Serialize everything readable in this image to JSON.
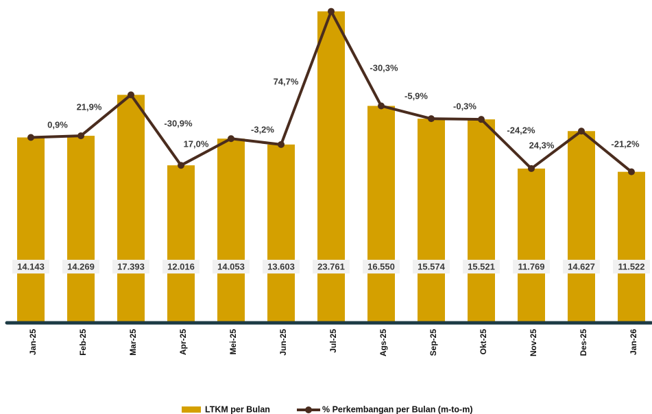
{
  "chart_data": {
    "type": "bar_line",
    "categories": [
      "Jan-25",
      "Feb-25",
      "Mar-25",
      "Apr-25",
      "Mei-25",
      "Jun-25",
      "Jul-25",
      "Ags-25",
      "Sep-25",
      "Okt-25",
      "Nov-25",
      "Des-25",
      "Jan-26"
    ],
    "series": [
      {
        "name": "LTKM per Bulan",
        "color": "#d4a000",
        "values": [
          14143,
          14269,
          17393,
          12016,
          14053,
          13603,
          23761,
          16550,
          15574,
          15521,
          11769,
          14627,
          11522
        ],
        "value_labels": [
          "14.143",
          "14.269",
          "17.393",
          "12.016",
          "14.053",
          "13.603",
          "23.761",
          "16.550",
          "15.574",
          "15.521",
          "11.769",
          "14.627",
          "11.522"
        ]
      },
      {
        "name": "% Perkembangan per Bulan (m-to-m)",
        "color": "#4a2c1e",
        "values": [
          null,
          0.9,
          21.9,
          -30.9,
          17.0,
          -3.2,
          74.7,
          -30.3,
          -5.9,
          -0.3,
          -24.2,
          24.3,
          -21.2
        ],
        "value_labels": [
          null,
          "0,9%",
          "21,9%",
          "-30,9%",
          "17,0%",
          "-3,2%",
          "74,7%",
          "-30,3%",
          "-5,9%",
          "-0,3%",
          "-24,2%",
          "24,3%",
          "-21,2%"
        ]
      }
    ],
    "ylim": [
      0,
      24000
    ]
  }
}
